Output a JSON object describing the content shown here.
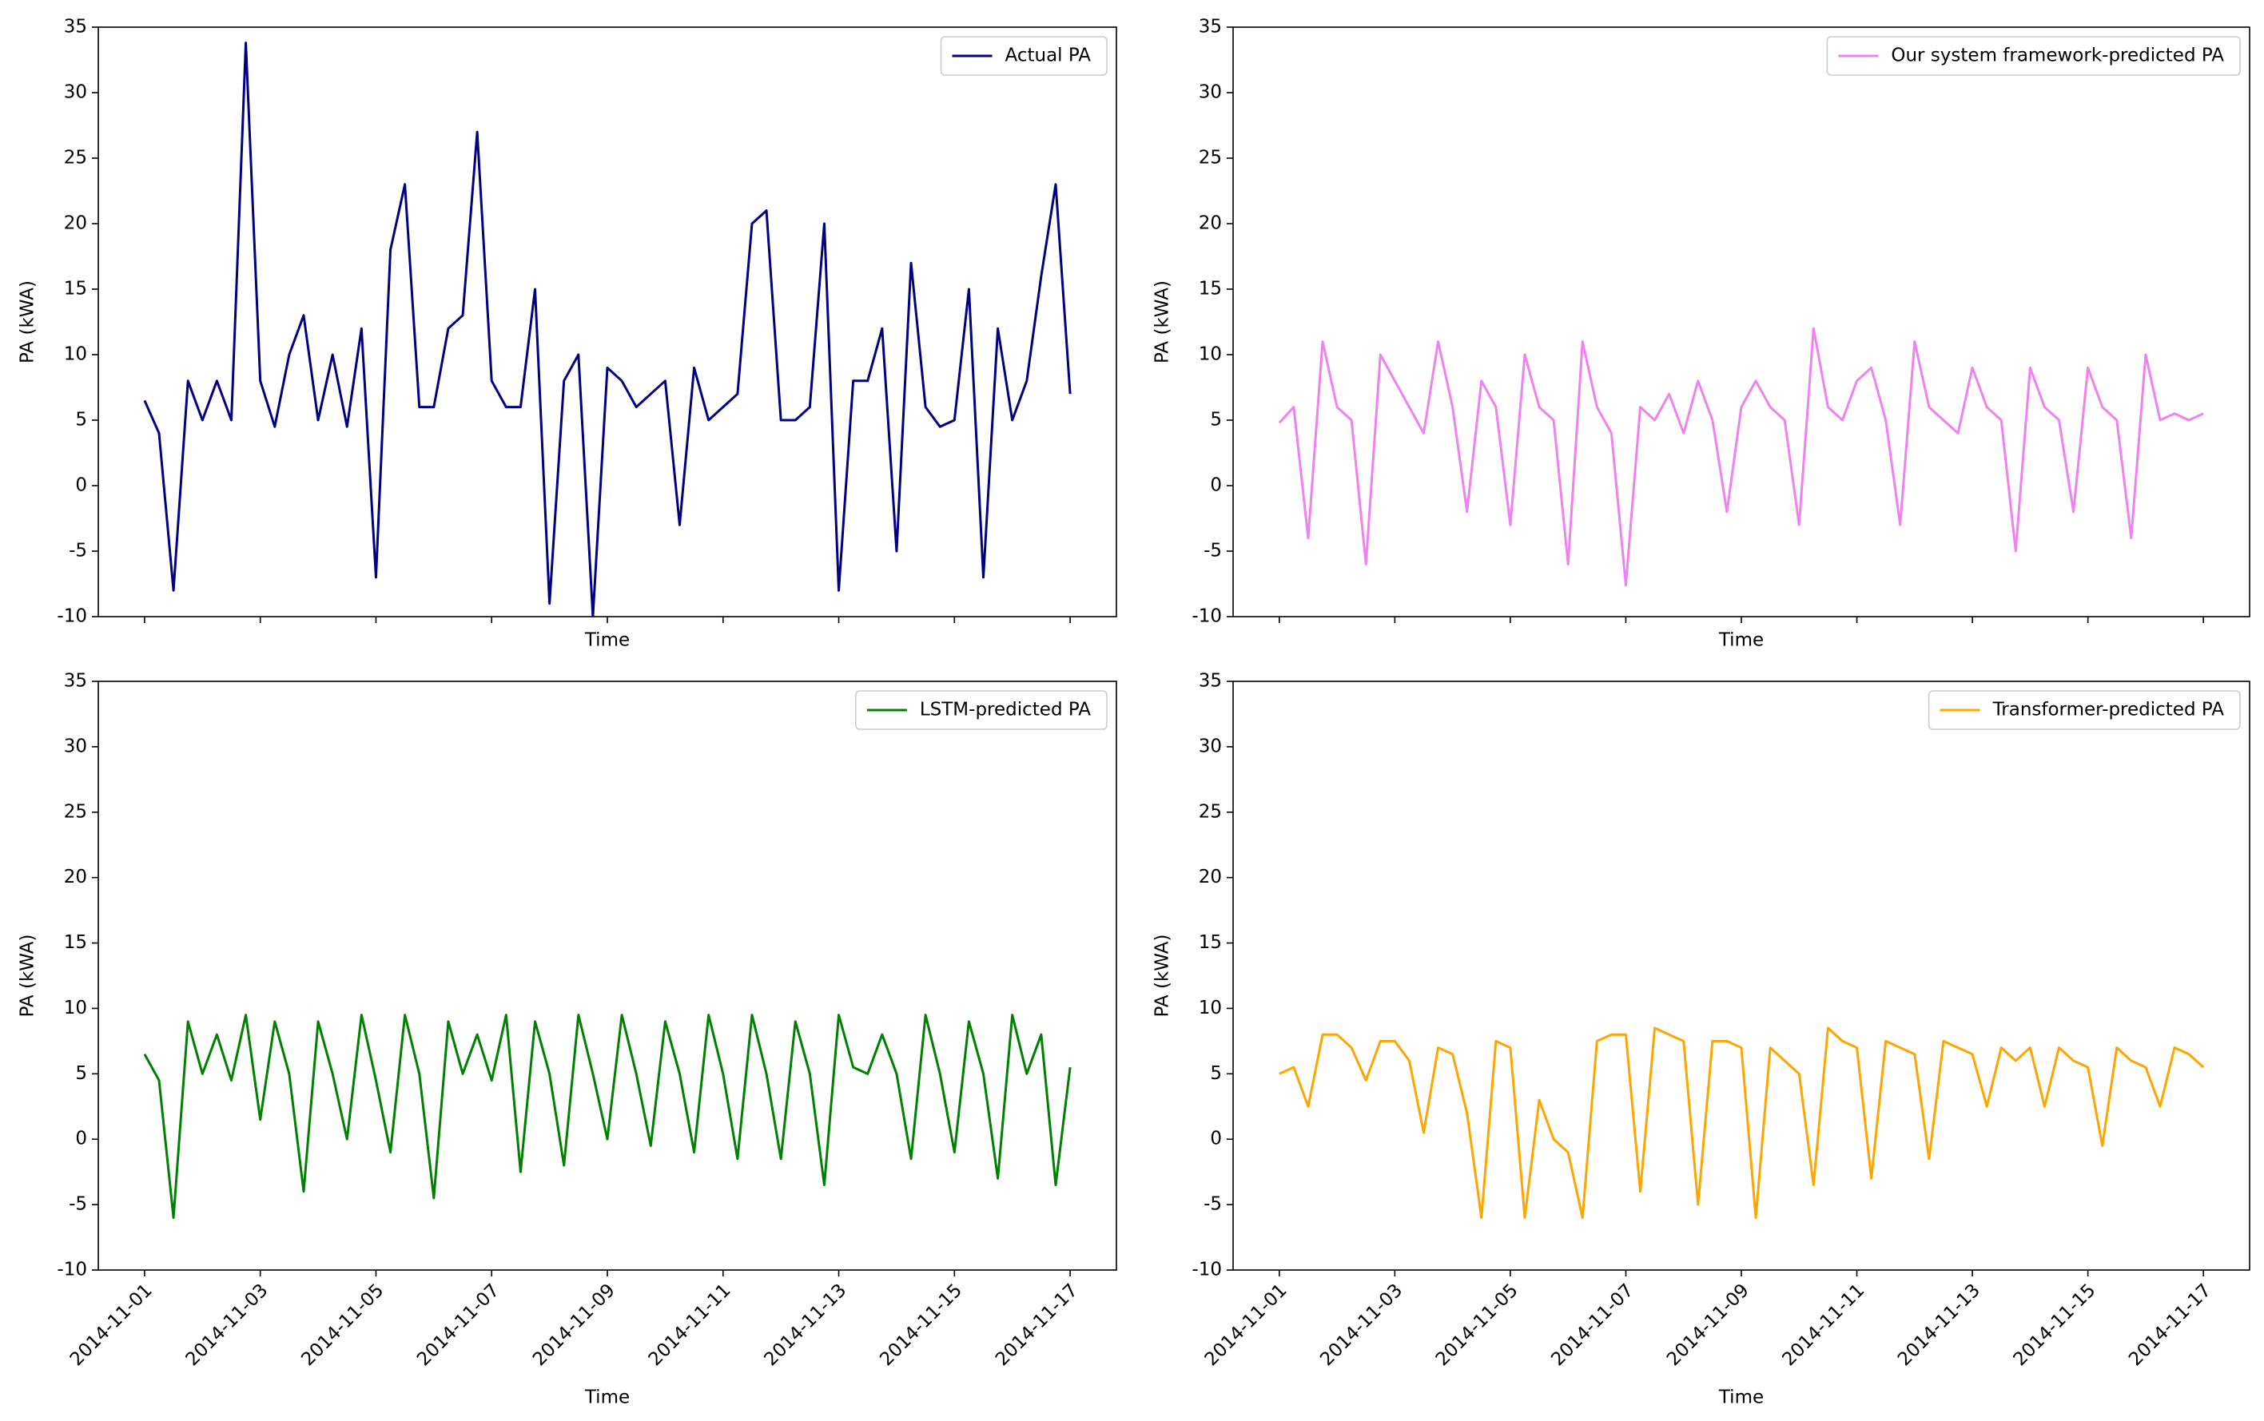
{
  "chart_data": [
    {
      "type": "line",
      "xlabel": "Time",
      "ylabel": "PA (kWA)",
      "legend": "upper right",
      "show_xtick_labels": false,
      "xlim": [
        "2014-10-31 04:48",
        "2014-11-17 19:12"
      ],
      "xticks": [
        "2014-11-01",
        "2014-11-03",
        "2014-11-05",
        "2014-11-07",
        "2014-11-09",
        "2014-11-11",
        "2014-11-13",
        "2014-11-15",
        "2014-11-17"
      ],
      "ylim": [
        -10,
        35
      ],
      "yticks": [
        -10,
        -5,
        0,
        5,
        10,
        15,
        20,
        25,
        30,
        35
      ],
      "x": [
        "2014-11-01 00:00",
        "2014-11-01 06:00",
        "2014-11-01 12:00",
        "2014-11-01 18:00",
        "2014-11-02 00:00",
        "2014-11-02 06:00",
        "2014-11-02 12:00",
        "2014-11-02 18:00",
        "2014-11-03 00:00",
        "2014-11-03 06:00",
        "2014-11-03 12:00",
        "2014-11-03 18:00",
        "2014-11-04 00:00",
        "2014-11-04 06:00",
        "2014-11-04 12:00",
        "2014-11-04 18:00",
        "2014-11-05 00:00",
        "2014-11-05 06:00",
        "2014-11-05 12:00",
        "2014-11-05 18:00",
        "2014-11-06 00:00",
        "2014-11-06 06:00",
        "2014-11-06 12:00",
        "2014-11-06 18:00",
        "2014-11-07 00:00",
        "2014-11-07 06:00",
        "2014-11-07 12:00",
        "2014-11-07 18:00",
        "2014-11-08 00:00",
        "2014-11-08 06:00",
        "2014-11-08 12:00",
        "2014-11-08 18:00",
        "2014-11-09 00:00",
        "2014-11-09 06:00",
        "2014-11-09 12:00",
        "2014-11-09 18:00",
        "2014-11-10 00:00",
        "2014-11-10 06:00",
        "2014-11-10 12:00",
        "2014-11-10 18:00",
        "2014-11-11 00:00",
        "2014-11-11 06:00",
        "2014-11-11 12:00",
        "2014-11-11 18:00",
        "2014-11-12 00:00",
        "2014-11-12 06:00",
        "2014-11-12 12:00",
        "2014-11-12 18:00",
        "2014-11-13 00:00",
        "2014-11-13 06:00",
        "2014-11-13 12:00",
        "2014-11-13 18:00",
        "2014-11-14 00:00",
        "2014-11-14 06:00",
        "2014-11-14 12:00",
        "2014-11-14 18:00",
        "2014-11-15 00:00",
        "2014-11-15 06:00",
        "2014-11-15 12:00",
        "2014-11-15 18:00",
        "2014-11-16 00:00",
        "2014-11-16 06:00",
        "2014-11-16 12:00",
        "2014-11-16 18:00",
        "2014-11-17 00:00"
      ],
      "series": [
        {
          "name": "Actual PA",
          "color": "#000080",
          "values": [
            6.5,
            4,
            -8,
            8,
            5,
            8,
            5,
            33.8,
            8,
            4.5,
            10,
            13,
            5,
            10,
            4.5,
            12,
            -7,
            18,
            23,
            6,
            6,
            12,
            13,
            27,
            8,
            6,
            6,
            15,
            -9,
            8,
            10,
            -10,
            9,
            8,
            6,
            7,
            8,
            -3,
            9,
            5,
            6,
            7,
            20,
            21,
            5,
            5,
            6,
            20,
            -8,
            8,
            8,
            12,
            -5,
            17,
            6,
            4.5,
            5,
            15,
            -7,
            12,
            5,
            8,
            16,
            23,
            7
          ]
        }
      ]
    },
    {
      "type": "line",
      "xlabel": "Time",
      "ylabel": "PA (kWA)",
      "legend": "upper right",
      "show_xtick_labels": false,
      "xlim": [
        "2014-10-31 04:48",
        "2014-11-17 19:12"
      ],
      "xticks": [
        "2014-11-01",
        "2014-11-03",
        "2014-11-05",
        "2014-11-07",
        "2014-11-09",
        "2014-11-11",
        "2014-11-13",
        "2014-11-15",
        "2014-11-17"
      ],
      "ylim": [
        -10,
        35
      ],
      "yticks": [
        -10,
        -5,
        0,
        5,
        10,
        15,
        20,
        25,
        30,
        35
      ],
      "x": [
        "2014-11-01 00:00",
        "2014-11-01 06:00",
        "2014-11-01 12:00",
        "2014-11-01 18:00",
        "2014-11-02 00:00",
        "2014-11-02 06:00",
        "2014-11-02 12:00",
        "2014-11-02 18:00",
        "2014-11-03 00:00",
        "2014-11-03 06:00",
        "2014-11-03 12:00",
        "2014-11-03 18:00",
        "2014-11-04 00:00",
        "2014-11-04 06:00",
        "2014-11-04 12:00",
        "2014-11-04 18:00",
        "2014-11-05 00:00",
        "2014-11-05 06:00",
        "2014-11-05 12:00",
        "2014-11-05 18:00",
        "2014-11-06 00:00",
        "2014-11-06 06:00",
        "2014-11-06 12:00",
        "2014-11-06 18:00",
        "2014-11-07 00:00",
        "2014-11-07 06:00",
        "2014-11-07 12:00",
        "2014-11-07 18:00",
        "2014-11-08 00:00",
        "2014-11-08 06:00",
        "2014-11-08 12:00",
        "2014-11-08 18:00",
        "2014-11-09 00:00",
        "2014-11-09 06:00",
        "2014-11-09 12:00",
        "2014-11-09 18:00",
        "2014-11-10 00:00",
        "2014-11-10 06:00",
        "2014-11-10 12:00",
        "2014-11-10 18:00",
        "2014-11-11 00:00",
        "2014-11-11 06:00",
        "2014-11-11 12:00",
        "2014-11-11 18:00",
        "2014-11-12 00:00",
        "2014-11-12 06:00",
        "2014-11-12 12:00",
        "2014-11-12 18:00",
        "2014-11-13 00:00",
        "2014-11-13 06:00",
        "2014-11-13 12:00",
        "2014-11-13 18:00",
        "2014-11-14 00:00",
        "2014-11-14 06:00",
        "2014-11-14 12:00",
        "2014-11-14 18:00",
        "2014-11-15 00:00",
        "2014-11-15 06:00",
        "2014-11-15 12:00",
        "2014-11-15 18:00",
        "2014-11-16 00:00",
        "2014-11-16 06:00",
        "2014-11-16 12:00",
        "2014-11-16 18:00",
        "2014-11-17 00:00"
      ],
      "series": [
        {
          "name": "Our system framework-predicted PA",
          "color": "#ee82ee",
          "values": [
            4.8,
            6,
            -4,
            11,
            6,
            5,
            -6,
            10,
            8,
            6,
            4,
            11,
            6,
            -2,
            8,
            6,
            -3,
            10,
            6,
            5,
            -6,
            11,
            6,
            4,
            -7.6,
            6,
            5,
            7,
            4,
            8,
            5,
            -2,
            6,
            8,
            6,
            5,
            -3,
            12,
            6,
            5,
            8,
            9,
            5,
            -3,
            11,
            6,
            5,
            4,
            9,
            6,
            5,
            -5,
            9,
            6,
            5,
            -2,
            9,
            6,
            5,
            -4,
            10,
            5,
            5.5,
            5,
            5.5
          ]
        }
      ]
    },
    {
      "type": "line",
      "xlabel": "Time",
      "ylabel": "PA (kWA)",
      "legend": "upper right",
      "show_xtick_labels": true,
      "xlim": [
        "2014-10-31 04:48",
        "2014-11-17 19:12"
      ],
      "xticks": [
        "2014-11-01",
        "2014-11-03",
        "2014-11-05",
        "2014-11-07",
        "2014-11-09",
        "2014-11-11",
        "2014-11-13",
        "2014-11-15",
        "2014-11-17"
      ],
      "ylim": [
        -10,
        35
      ],
      "yticks": [
        -10,
        -5,
        0,
        5,
        10,
        15,
        20,
        25,
        30,
        35
      ],
      "x": [
        "2014-11-01 00:00",
        "2014-11-01 06:00",
        "2014-11-01 12:00",
        "2014-11-01 18:00",
        "2014-11-02 00:00",
        "2014-11-02 06:00",
        "2014-11-02 12:00",
        "2014-11-02 18:00",
        "2014-11-03 00:00",
        "2014-11-03 06:00",
        "2014-11-03 12:00",
        "2014-11-03 18:00",
        "2014-11-04 00:00",
        "2014-11-04 06:00",
        "2014-11-04 12:00",
        "2014-11-04 18:00",
        "2014-11-05 00:00",
        "2014-11-05 06:00",
        "2014-11-05 12:00",
        "2014-11-05 18:00",
        "2014-11-06 00:00",
        "2014-11-06 06:00",
        "2014-11-06 12:00",
        "2014-11-06 18:00",
        "2014-11-07 00:00",
        "2014-11-07 06:00",
        "2014-11-07 12:00",
        "2014-11-07 18:00",
        "2014-11-08 00:00",
        "2014-11-08 06:00",
        "2014-11-08 12:00",
        "2014-11-08 18:00",
        "2014-11-09 00:00",
        "2014-11-09 06:00",
        "2014-11-09 12:00",
        "2014-11-09 18:00",
        "2014-11-10 00:00",
        "2014-11-10 06:00",
        "2014-11-10 12:00",
        "2014-11-10 18:00",
        "2014-11-11 00:00",
        "2014-11-11 06:00",
        "2014-11-11 12:00",
        "2014-11-11 18:00",
        "2014-11-12 00:00",
        "2014-11-12 06:00",
        "2014-11-12 12:00",
        "2014-11-12 18:00",
        "2014-11-13 00:00",
        "2014-11-13 06:00",
        "2014-11-13 12:00",
        "2014-11-13 18:00",
        "2014-11-14 00:00",
        "2014-11-14 06:00",
        "2014-11-14 12:00",
        "2014-11-14 18:00",
        "2014-11-15 00:00",
        "2014-11-15 06:00",
        "2014-11-15 12:00",
        "2014-11-15 18:00",
        "2014-11-16 00:00",
        "2014-11-16 06:00",
        "2014-11-16 12:00",
        "2014-11-16 18:00",
        "2014-11-17 00:00"
      ],
      "series": [
        {
          "name": "LSTM-predicted PA",
          "color": "#008000",
          "values": [
            6.5,
            4.5,
            -6,
            9,
            5,
            8,
            4.5,
            9.5,
            1.5,
            9,
            5,
            -4,
            9,
            5,
            0,
            9.5,
            4.5,
            -1,
            9.5,
            5,
            -4.5,
            9,
            5,
            8,
            4.5,
            9.5,
            -2.5,
            9,
            5,
            -2,
            9.5,
            5,
            0,
            9.5,
            5,
            -0.5,
            9,
            5,
            -1,
            9.5,
            5,
            -1.5,
            9.5,
            5,
            -1.5,
            9,
            5,
            -3.5,
            9.5,
            5.5,
            5,
            8,
            5,
            -1.5,
            9.5,
            5,
            -1,
            9,
            5,
            -3,
            9.5,
            5,
            8,
            -3.5,
            5.5
          ]
        }
      ]
    },
    {
      "type": "line",
      "xlabel": "Time",
      "ylabel": "PA (kWA)",
      "legend": "upper right",
      "show_xtick_labels": true,
      "xlim": [
        "2014-10-31 04:48",
        "2014-11-17 19:12"
      ],
      "xticks": [
        "2014-11-01",
        "2014-11-03",
        "2014-11-05",
        "2014-11-07",
        "2014-11-09",
        "2014-11-11",
        "2014-11-13",
        "2014-11-15",
        "2014-11-17"
      ],
      "ylim": [
        -10,
        35
      ],
      "yticks": [
        -10,
        -5,
        0,
        5,
        10,
        15,
        20,
        25,
        30,
        35
      ],
      "x": [
        "2014-11-01 00:00",
        "2014-11-01 06:00",
        "2014-11-01 12:00",
        "2014-11-01 18:00",
        "2014-11-02 00:00",
        "2014-11-02 06:00",
        "2014-11-02 12:00",
        "2014-11-02 18:00",
        "2014-11-03 00:00",
        "2014-11-03 06:00",
        "2014-11-03 12:00",
        "2014-11-03 18:00",
        "2014-11-04 00:00",
        "2014-11-04 06:00",
        "2014-11-04 12:00",
        "2014-11-04 18:00",
        "2014-11-05 00:00",
        "2014-11-05 06:00",
        "2014-11-05 12:00",
        "2014-11-05 18:00",
        "2014-11-06 00:00",
        "2014-11-06 06:00",
        "2014-11-06 12:00",
        "2014-11-06 18:00",
        "2014-11-07 00:00",
        "2014-11-07 06:00",
        "2014-11-07 12:00",
        "2014-11-07 18:00",
        "2014-11-08 00:00",
        "2014-11-08 06:00",
        "2014-11-08 12:00",
        "2014-11-08 18:00",
        "2014-11-09 00:00",
        "2014-11-09 06:00",
        "2014-11-09 12:00",
        "2014-11-09 18:00",
        "2014-11-10 00:00",
        "2014-11-10 06:00",
        "2014-11-10 12:00",
        "2014-11-10 18:00",
        "2014-11-11 00:00",
        "2014-11-11 06:00",
        "2014-11-11 12:00",
        "2014-11-11 18:00",
        "2014-11-12 00:00",
        "2014-11-12 06:00",
        "2014-11-12 12:00",
        "2014-11-12 18:00",
        "2014-11-13 00:00",
        "2014-11-13 06:00",
        "2014-11-13 12:00",
        "2014-11-13 18:00",
        "2014-11-14 00:00",
        "2014-11-14 06:00",
        "2014-11-14 12:00",
        "2014-11-14 18:00",
        "2014-11-15 00:00",
        "2014-11-15 06:00",
        "2014-11-15 12:00",
        "2014-11-15 18:00",
        "2014-11-16 00:00",
        "2014-11-16 06:00",
        "2014-11-16 12:00",
        "2014-11-16 18:00",
        "2014-11-17 00:00"
      ],
      "series": [
        {
          "name": "Transformer-predicted PA",
          "color": "#ffa500",
          "values": [
            5,
            5.5,
            2.5,
            8,
            8,
            7,
            4.5,
            7.5,
            7.5,
            6,
            0.5,
            7,
            6.5,
            2,
            -6,
            7.5,
            7,
            -6,
            3,
            0,
            -1,
            -6,
            7.5,
            8,
            8,
            -4,
            8.5,
            8,
            7.5,
            -5,
            7.5,
            7.5,
            7,
            -6,
            7,
            6,
            5,
            -3.5,
            8.5,
            7.5,
            7,
            -3,
            7.5,
            7,
            6.5,
            -1.5,
            7.5,
            7,
            6.5,
            2.5,
            7,
            6,
            7,
            2.5,
            7,
            6,
            5.5,
            -0.5,
            7,
            6,
            5.5,
            2.5,
            7,
            6.5,
            5.5
          ]
        }
      ]
    }
  ]
}
